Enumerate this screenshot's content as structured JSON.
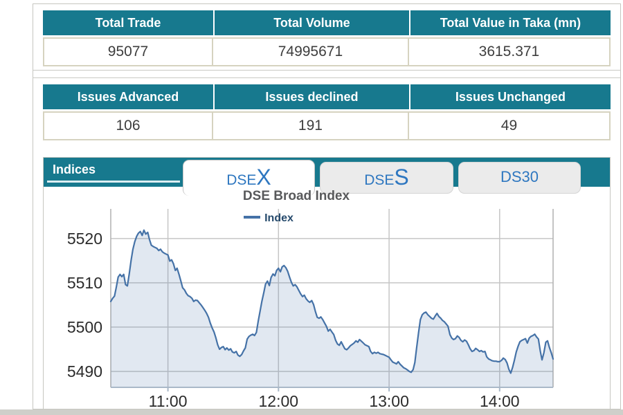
{
  "theme": {
    "teal": "#17798e",
    "tab_text_blue": "#2e77c0",
    "table_border_tan": "#d6d3c0",
    "line_blue": "#4572a7"
  },
  "tables": {
    "summary": {
      "headers": [
        "Total Trade",
        "Total Volume",
        "Total Value in Taka (mn)"
      ],
      "values": [
        "95077",
        "74995671",
        "3615.371"
      ]
    },
    "issues": {
      "headers": [
        "Issues Advanced",
        "Issues declined",
        "Issues Unchanged"
      ],
      "values": [
        "106",
        "191",
        "49"
      ]
    }
  },
  "indices_panel": {
    "title": "Indices",
    "tabs": [
      {
        "prefix": "DSE",
        "suffix": "X",
        "active": true
      },
      {
        "prefix": "DSE",
        "suffix": "S",
        "active": false
      },
      {
        "label": "DS30",
        "active": false
      }
    ]
  },
  "chart_data": {
    "type": "area",
    "title": "DSE Broad Index",
    "legend_label": "Index",
    "legend_position": "top-center",
    "grid": true,
    "x_unit": "hour_of_day",
    "xticks": [
      11,
      12,
      13,
      14
    ],
    "xtick_labels": [
      "11:00",
      "12:00",
      "13:00",
      "14:00"
    ],
    "yticks": [
      5490,
      5500,
      5510,
      5520
    ],
    "xlim": [
      10.483,
      14.483
    ],
    "ylim": [
      5486.4,
      5526.7
    ],
    "colors": {
      "line": "#4572a7",
      "fill": "rgba(69,114,167,0.16)",
      "grid": "#c6c6c6",
      "plot_border": "#b0b0b0",
      "axis_line": "#a9b8c8",
      "axis_text": "#2b2b2b"
    },
    "points": [
      [
        10.483,
        5505.8
      ],
      [
        10.5,
        5506.5
      ],
      [
        10.517,
        5507.0
      ],
      [
        10.533,
        5509.0
      ],
      [
        10.55,
        5511.3
      ],
      [
        10.567,
        5511.9
      ],
      [
        10.583,
        5511.4
      ],
      [
        10.6,
        5511.9
      ],
      [
        10.617,
        5509.6
      ],
      [
        10.633,
        5509.3
      ],
      [
        10.65,
        5512.0
      ],
      [
        10.667,
        5515.1
      ],
      [
        10.683,
        5517.5
      ],
      [
        10.7,
        5519.3
      ],
      [
        10.717,
        5520.5
      ],
      [
        10.733,
        5521.2
      ],
      [
        10.75,
        5521.6
      ],
      [
        10.767,
        5520.7
      ],
      [
        10.783,
        5521.9
      ],
      [
        10.8,
        5521.0
      ],
      [
        10.817,
        5521.4
      ],
      [
        10.833,
        5519.8
      ],
      [
        10.85,
        5518.5
      ],
      [
        10.867,
        5518.2
      ],
      [
        10.883,
        5518.0
      ],
      [
        10.9,
        5517.8
      ],
      [
        10.917,
        5517.3
      ],
      [
        10.933,
        5517.6
      ],
      [
        10.95,
        5517.0
      ],
      [
        10.967,
        5516.7
      ],
      [
        10.983,
        5516.5
      ],
      [
        11.0,
        5516.3
      ],
      [
        11.017,
        5514.9
      ],
      [
        11.033,
        5515.2
      ],
      [
        11.05,
        5514.3
      ],
      [
        11.067,
        5512.8
      ],
      [
        11.083,
        5513.3
      ],
      [
        11.1,
        5511.9
      ],
      [
        11.117,
        5510.4
      ],
      [
        11.133,
        5508.9
      ],
      [
        11.15,
        5508.4
      ],
      [
        11.167,
        5507.6
      ],
      [
        11.183,
        5507.1
      ],
      [
        11.2,
        5506.9
      ],
      [
        11.217,
        5506.5
      ],
      [
        11.233,
        5505.8
      ],
      [
        11.25,
        5506.1
      ],
      [
        11.267,
        5506.0
      ],
      [
        11.283,
        5505.5
      ],
      [
        11.3,
        5505.0
      ],
      [
        11.317,
        5504.4
      ],
      [
        11.333,
        5503.8
      ],
      [
        11.35,
        5503.1
      ],
      [
        11.367,
        5502.2
      ],
      [
        11.383,
        5500.9
      ],
      [
        11.4,
        5499.8
      ],
      [
        11.417,
        5498.9
      ],
      [
        11.433,
        5497.6
      ],
      [
        11.45,
        5496.0
      ],
      [
        11.467,
        5495.0
      ],
      [
        11.483,
        5495.4
      ],
      [
        11.5,
        5495.6
      ],
      [
        11.517,
        5494.9
      ],
      [
        11.533,
        5495.3
      ],
      [
        11.55,
        5494.8
      ],
      [
        11.567,
        5495.1
      ],
      [
        11.583,
        5494.4
      ],
      [
        11.6,
        5494.2
      ],
      [
        11.617,
        5494.5
      ],
      [
        11.633,
        5493.7
      ],
      [
        11.65,
        5493.4
      ],
      [
        11.667,
        5493.8
      ],
      [
        11.683,
        5494.6
      ],
      [
        11.7,
        5495.3
      ],
      [
        11.717,
        5497.3
      ],
      [
        11.733,
        5497.9
      ],
      [
        11.75,
        5498.2
      ],
      [
        11.767,
        5498.4
      ],
      [
        11.783,
        5498.1
      ],
      [
        11.8,
        5498.8
      ],
      [
        11.817,
        5501.4
      ],
      [
        11.833,
        5503.6
      ],
      [
        11.85,
        5505.9
      ],
      [
        11.867,
        5507.8
      ],
      [
        11.883,
        5509.7
      ],
      [
        11.9,
        5510.4
      ],
      [
        11.917,
        5509.4
      ],
      [
        11.933,
        5511.2
      ],
      [
        11.95,
        5512.0
      ],
      [
        11.967,
        5511.6
      ],
      [
        11.983,
        5512.8
      ],
      [
        12.0,
        5513.3
      ],
      [
        12.017,
        5512.5
      ],
      [
        12.033,
        5513.6
      ],
      [
        12.05,
        5513.9
      ],
      [
        12.067,
        5513.4
      ],
      [
        12.083,
        5512.6
      ],
      [
        12.1,
        5511.3
      ],
      [
        12.117,
        5510.1
      ],
      [
        12.133,
        5509.3
      ],
      [
        12.15,
        5509.6
      ],
      [
        12.167,
        5509.1
      ],
      [
        12.183,
        5508.3
      ],
      [
        12.2,
        5507.5
      ],
      [
        12.217,
        5506.9
      ],
      [
        12.233,
        5507.2
      ],
      [
        12.25,
        5506.4
      ],
      [
        12.267,
        5505.9
      ],
      [
        12.283,
        5505.6
      ],
      [
        12.3,
        5506.0
      ],
      [
        12.317,
        5505.1
      ],
      [
        12.333,
        5503.6
      ],
      [
        12.35,
        5502.2
      ],
      [
        12.367,
        5502.0
      ],
      [
        12.383,
        5502.3
      ],
      [
        12.4,
        5501.7
      ],
      [
        12.417,
        5500.9
      ],
      [
        12.433,
        5500.2
      ],
      [
        12.45,
        5499.1
      ],
      [
        12.467,
        5499.5
      ],
      [
        12.483,
        5498.9
      ],
      [
        12.5,
        5498.3
      ],
      [
        12.517,
        5497.0
      ],
      [
        12.533,
        5496.2
      ],
      [
        12.55,
        5495.9
      ],
      [
        12.567,
        5496.7
      ],
      [
        12.583,
        5495.9
      ],
      [
        12.6,
        5495.1
      ],
      [
        12.617,
        5494.9
      ],
      [
        12.633,
        5495.3
      ],
      [
        12.65,
        5495.8
      ],
      [
        12.667,
        5496.1
      ],
      [
        12.683,
        5496.4
      ],
      [
        12.7,
        5496.9
      ],
      [
        12.717,
        5496.6
      ],
      [
        12.733,
        5497.2
      ],
      [
        12.75,
        5496.8
      ],
      [
        12.767,
        5496.4
      ],
      [
        12.783,
        5496.0
      ],
      [
        12.8,
        5495.8
      ],
      [
        12.817,
        5495.6
      ],
      [
        12.833,
        5494.5
      ],
      [
        12.85,
        5494.0
      ],
      [
        12.867,
        5494.3
      ],
      [
        12.883,
        5494.1
      ],
      [
        12.9,
        5494.3
      ],
      [
        12.917,
        5494.0
      ],
      [
        12.933,
        5493.9
      ],
      [
        12.95,
        5493.8
      ],
      [
        12.967,
        5493.6
      ],
      [
        12.983,
        5493.4
      ],
      [
        13.0,
        5493.2
      ],
      [
        13.017,
        5492.6
      ],
      [
        13.033,
        5492.1
      ],
      [
        13.05,
        5491.9
      ],
      [
        13.067,
        5491.7
      ],
      [
        13.083,
        5492.2
      ],
      [
        13.1,
        5491.6
      ],
      [
        13.117,
        5491.2
      ],
      [
        13.133,
        5490.8
      ],
      [
        13.15,
        5490.6
      ],
      [
        13.167,
        5490.3
      ],
      [
        13.183,
        5490.0
      ],
      [
        13.2,
        5489.8
      ],
      [
        13.217,
        5490.4
      ],
      [
        13.233,
        5492.0
      ],
      [
        13.25,
        5495.5
      ],
      [
        13.267,
        5498.8
      ],
      [
        13.283,
        5501.7
      ],
      [
        13.3,
        5502.8
      ],
      [
        13.317,
        5503.2
      ],
      [
        13.333,
        5503.4
      ],
      [
        13.35,
        5502.8
      ],
      [
        13.367,
        5502.4
      ],
      [
        13.383,
        5502.0
      ],
      [
        13.4,
        5501.8
      ],
      [
        13.417,
        5502.5
      ],
      [
        13.433,
        5503.1
      ],
      [
        13.45,
        5502.4
      ],
      [
        13.467,
        5502.0
      ],
      [
        13.483,
        5501.5
      ],
      [
        13.5,
        5501.2
      ],
      [
        13.517,
        5500.7
      ],
      [
        13.533,
        5500.2
      ],
      [
        13.55,
        5498.3
      ],
      [
        13.567,
        5497.5
      ],
      [
        13.583,
        5497.2
      ],
      [
        13.6,
        5497.4
      ],
      [
        13.617,
        5498.0
      ],
      [
        13.633,
        5497.7
      ],
      [
        13.65,
        5497.0
      ],
      [
        13.667,
        5496.7
      ],
      [
        13.683,
        5497.1
      ],
      [
        13.7,
        5496.8
      ],
      [
        13.717,
        5496.0
      ],
      [
        13.733,
        5495.1
      ],
      [
        13.75,
        5494.5
      ],
      [
        13.767,
        5494.7
      ],
      [
        13.783,
        5495.2
      ],
      [
        13.8,
        5494.9
      ],
      [
        13.817,
        5494.5
      ],
      [
        13.833,
        5494.7
      ],
      [
        13.85,
        5494.4
      ],
      [
        13.867,
        5494.5
      ],
      [
        13.883,
        5493.3
      ],
      [
        13.9,
        5492.8
      ],
      [
        13.917,
        5492.6
      ],
      [
        13.933,
        5492.4
      ],
      [
        13.95,
        5492.3
      ],
      [
        13.967,
        5492.3
      ],
      [
        13.983,
        5492.2
      ],
      [
        14.0,
        5492.2
      ],
      [
        14.017,
        5492.5
      ],
      [
        14.033,
        5493.0
      ],
      [
        14.05,
        5492.7
      ],
      [
        14.067,
        5491.9
      ],
      [
        14.083,
        5490.5
      ],
      [
        14.1,
        5489.6
      ],
      [
        14.117,
        5490.9
      ],
      [
        14.133,
        5492.5
      ],
      [
        14.15,
        5494.4
      ],
      [
        14.167,
        5495.7
      ],
      [
        14.183,
        5496.7
      ],
      [
        14.2,
        5497.0
      ],
      [
        14.217,
        5497.2
      ],
      [
        14.233,
        5497.4
      ],
      [
        14.25,
        5496.4
      ],
      [
        14.267,
        5497.5
      ],
      [
        14.283,
        5497.9
      ],
      [
        14.3,
        5498.1
      ],
      [
        14.317,
        5498.4
      ],
      [
        14.333,
        5497.8
      ],
      [
        14.35,
        5497.3
      ],
      [
        14.367,
        5494.6
      ],
      [
        14.383,
        5492.6
      ],
      [
        14.4,
        5494.2
      ],
      [
        14.417,
        5496.6
      ],
      [
        14.433,
        5496.9
      ],
      [
        14.45,
        5495.4
      ],
      [
        14.467,
        5494.2
      ],
      [
        14.483,
        5492.8
      ]
    ]
  }
}
